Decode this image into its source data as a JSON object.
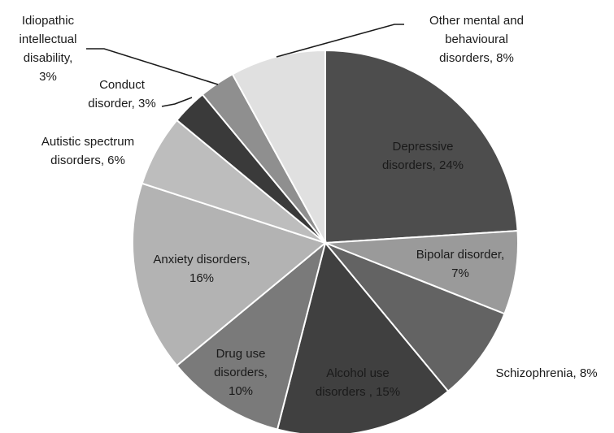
{
  "chart_data": {
    "type": "pie",
    "title": "",
    "slices": [
      {
        "label_lines": [
          "Depressive",
          "disorders, 24%"
        ],
        "value": 24,
        "color": "#4d4d4d"
      },
      {
        "label_lines": [
          "Bipolar disorder,",
          "7%"
        ],
        "value": 7,
        "color": "#9a9a9a"
      },
      {
        "label_lines": [
          "Schizophrenia, 8%"
        ],
        "value": 8,
        "color": "#636363"
      },
      {
        "label_lines": [
          "Alcohol use",
          "disorders , 15%"
        ],
        "value": 15,
        "color": "#404040"
      },
      {
        "label_lines": [
          "Drug use",
          "disorders,",
          "10%"
        ],
        "value": 10,
        "color": "#7a7a7a"
      },
      {
        "label_lines": [
          "Anxiety disorders,",
          "16%"
        ],
        "value": 16,
        "color": "#b3b3b3"
      },
      {
        "label_lines": [
          "Autistic spectrum",
          "disorders, 6%"
        ],
        "value": 6,
        "color": "#bdbdbd"
      },
      {
        "label_lines": [
          "Conduct",
          "disorder, 3%"
        ],
        "value": 3,
        "color": "#3a3a3a"
      },
      {
        "label_lines": [
          "Idiopathic",
          "intellectual",
          "disability,",
          "3%"
        ],
        "value": 3,
        "color": "#8f8f8f"
      },
      {
        "label_lines": [
          "Other mental and",
          "behavioural",
          "disorders, 8%"
        ],
        "value": 8,
        "color": "#e0e0e0"
      }
    ]
  }
}
